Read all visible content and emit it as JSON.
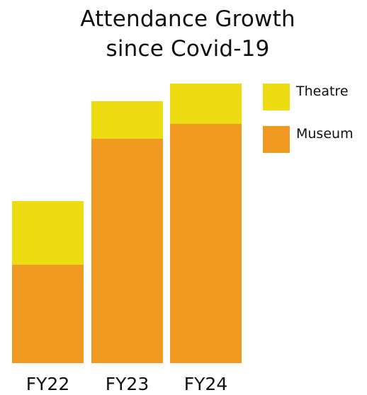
{
  "chart_data": {
    "type": "bar",
    "stacked": true,
    "title_line1": "Attendance Growth",
    "title_line2": "since Covid-19",
    "categories": [
      "FY22",
      "FY23",
      "FY24"
    ],
    "series": [
      {
        "name": "Museum",
        "color": "#F09A22",
        "values": [
          139,
          317,
          338
        ]
      },
      {
        "name": "Theatre",
        "color": "#EEDC12",
        "values": [
          90,
          53,
          57
        ]
      }
    ],
    "legend_order": [
      "Theatre",
      "Museum"
    ],
    "legend_position": "right",
    "xlabel": "",
    "ylabel": "",
    "ylim": [
      0,
      395
    ],
    "grid": false,
    "axes_visible": false
  }
}
